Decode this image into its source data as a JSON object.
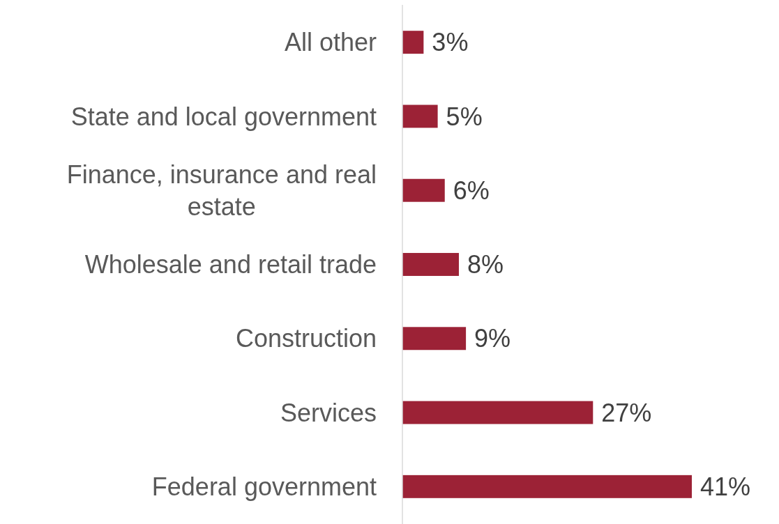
{
  "chart_data": {
    "type": "bar",
    "orientation": "horizontal",
    "categories": [
      "All other",
      "State and local government",
      "Finance, insurance and real estate",
      "Wholesale and retail trade",
      "Construction",
      "Services",
      "Federal government"
    ],
    "values": [
      3,
      5,
      6,
      8,
      9,
      27,
      41
    ],
    "value_labels": [
      "3%",
      "5%",
      "6%",
      "8%",
      "9%",
      "27%",
      "41%"
    ],
    "color": "#9c2236"
  }
}
